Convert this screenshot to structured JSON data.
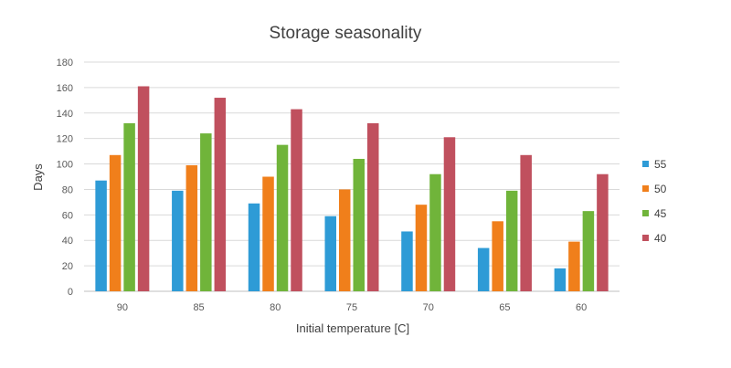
{
  "chart_data": {
    "type": "bar",
    "title": "Storage seasonality",
    "xlabel": "Initial temperature [C]",
    "ylabel": "Days",
    "ylim": [
      0,
      180
    ],
    "yticks": [
      0,
      20,
      40,
      60,
      80,
      100,
      120,
      140,
      160,
      180
    ],
    "grid": true,
    "legend_position": "right",
    "categories": [
      "90",
      "85",
      "80",
      "75",
      "70",
      "65",
      "60"
    ],
    "series": [
      {
        "name": "55",
        "color": "#2E9BD6",
        "values": [
          87,
          79,
          69,
          59,
          47,
          34,
          18
        ]
      },
      {
        "name": "50",
        "color": "#F07F1B",
        "values": [
          107,
          99,
          90,
          80,
          68,
          55,
          39
        ]
      },
      {
        "name": "45",
        "color": "#70B43A",
        "values": [
          132,
          124,
          115,
          104,
          92,
          79,
          63
        ]
      },
      {
        "name": "40",
        "color": "#C0505E",
        "values": [
          161,
          152,
          143,
          132,
          121,
          107,
          92
        ]
      }
    ]
  }
}
